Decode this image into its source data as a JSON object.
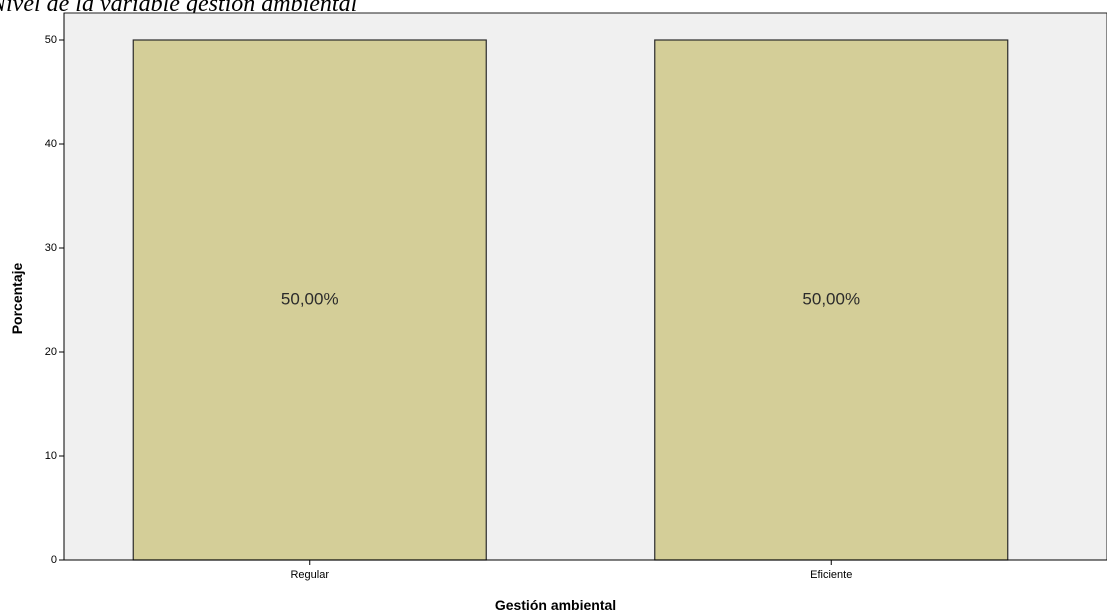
{
  "header": {
    "title": "Nivel de la variable gestión ambiental"
  },
  "chart_data": {
    "type": "bar",
    "title": "Nivel de la variable gestión ambiental",
    "xlabel": "Gestión ambiental",
    "ylabel": "Porcentaje",
    "categories": [
      "Regular",
      "Eficiente"
    ],
    "values": [
      50,
      50
    ],
    "data_labels": [
      "50,00%",
      "50,00%"
    ],
    "yticks": [
      "0",
      "10",
      "20",
      "30",
      "40",
      "50"
    ],
    "ylim": [
      0,
      50
    ],
    "grid": false,
    "legend": "none",
    "colors": {
      "bar_fill": "#d4ce98",
      "bar_stroke": "#2b2b2b",
      "plot_background": "#f0f0f0",
      "axis": "#000000"
    }
  }
}
